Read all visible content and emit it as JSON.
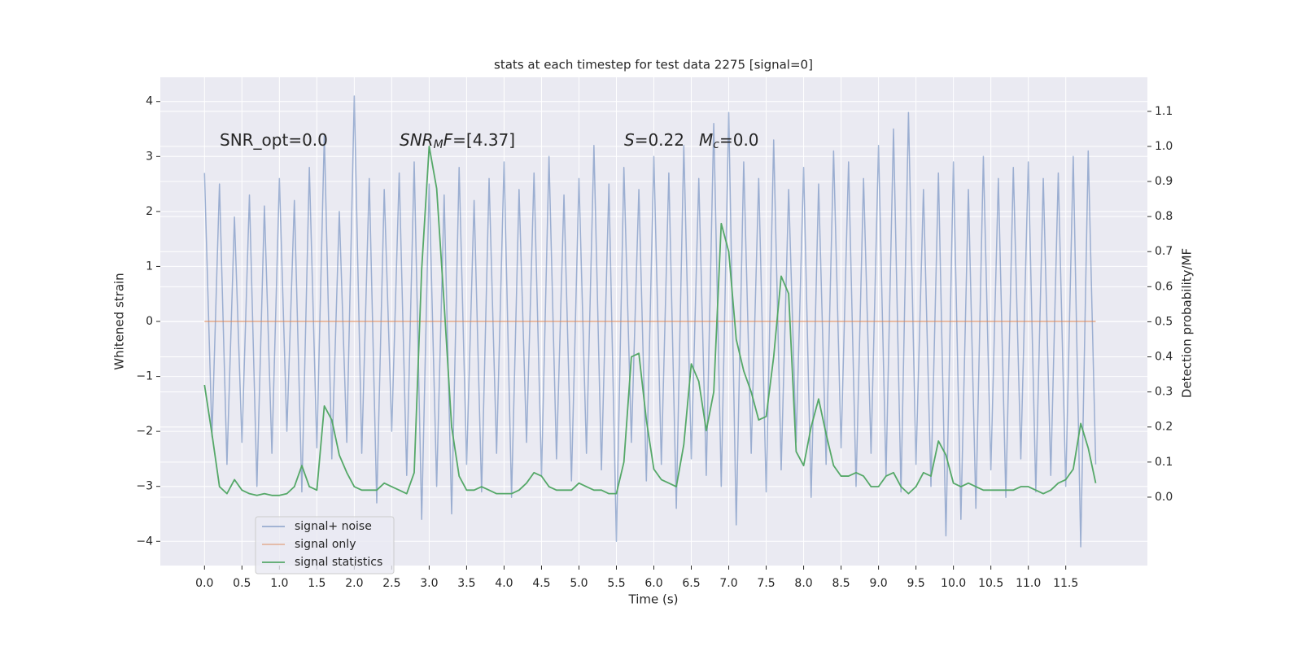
{
  "chart_data": {
    "type": "line",
    "title": "stats at each timestep for test data 2275 [signal=0]",
    "xlabel": "Time (s)",
    "ylabel": "Whitened strain",
    "y2label": "Detection probability/MF",
    "annotations": [
      [
        "SNR_opt=0.0"
      ],
      [
        "SNR",
        "M",
        "F",
        "=[4.37]"
      ],
      [
        "S",
        "=0.22"
      ],
      [
        "M",
        "c",
        "=0.0"
      ]
    ],
    "x": [
      0.0,
      0.1,
      0.2,
      0.3,
      0.4,
      0.5,
      0.6,
      0.7,
      0.8,
      0.9,
      1.0,
      1.1,
      1.2,
      1.3,
      1.4,
      1.5,
      1.6,
      1.7,
      1.8,
      1.9,
      2.0,
      2.1,
      2.2,
      2.3,
      2.4,
      2.5,
      2.6,
      2.7,
      2.8,
      2.9,
      3.0,
      3.1,
      3.2,
      3.3,
      3.4,
      3.5,
      3.6,
      3.7,
      3.8,
      3.9,
      4.0,
      4.1,
      4.2,
      4.3,
      4.4,
      4.5,
      4.6,
      4.7,
      4.8,
      4.9,
      5.0,
      5.1,
      5.2,
      5.3,
      5.4,
      5.5,
      5.6,
      5.7,
      5.8,
      5.9,
      6.0,
      6.1,
      6.2,
      6.3,
      6.4,
      6.5,
      6.6,
      6.7,
      6.8,
      6.9,
      7.0,
      7.1,
      7.2,
      7.3,
      7.4,
      7.5,
      7.6,
      7.7,
      7.8,
      7.9,
      8.0,
      8.1,
      8.2,
      8.3,
      8.4,
      8.5,
      8.6,
      8.7,
      8.8,
      8.9,
      9.0,
      9.1,
      9.2,
      9.3,
      9.4,
      9.5,
      9.6,
      9.7,
      9.8,
      9.9,
      10.0,
      10.1,
      10.2,
      10.3,
      10.4,
      10.5,
      10.6,
      10.7,
      10.8,
      10.9,
      11.0,
      11.1,
      11.2,
      11.3,
      11.4,
      11.5,
      11.6,
      11.7,
      11.8,
      11.9
    ],
    "series": [
      {
        "name": "signal+ noise",
        "color": "#4c72b0",
        "values": [
          2.7,
          -2.1,
          2.5,
          -2.6,
          1.9,
          -2.2,
          2.3,
          -3.0,
          2.1,
          -2.4,
          2.6,
          -2.0,
          2.2,
          -3.1,
          2.8,
          -2.3,
          3.4,
          -2.5,
          2.0,
          -2.2,
          4.1,
          -2.4,
          2.6,
          -3.3,
          2.4,
          -2.0,
          2.7,
          -2.8,
          2.9,
          -3.6,
          2.5,
          -3.0,
          2.3,
          -3.5,
          2.8,
          -2.6,
          2.2,
          -3.1,
          2.6,
          -2.4,
          2.9,
          -3.2,
          2.4,
          -2.2,
          2.7,
          -2.8,
          3.0,
          -2.5,
          2.3,
          -2.9,
          2.6,
          -2.4,
          3.2,
          -2.7,
          2.5,
          -4.0,
          2.8,
          -2.2,
          2.4,
          -2.9,
          3.0,
          -2.6,
          2.7,
          -3.4,
          3.2,
          -2.5,
          2.6,
          -2.8,
          3.6,
          -3.0,
          3.8,
          -3.7,
          2.9,
          -2.4,
          2.6,
          -3.1,
          3.3,
          -2.7,
          2.4,
          -2.2,
          2.8,
          -3.2,
          2.5,
          -2.6,
          3.1,
          -2.3,
          2.9,
          -3.0,
          2.6,
          -2.4,
          3.2,
          -2.8,
          3.5,
          -3.1,
          3.8,
          -2.6,
          2.4,
          -3.0,
          2.7,
          -3.9,
          2.9,
          -3.6,
          2.4,
          -3.4,
          3.0,
          -2.7,
          2.6,
          -3.2,
          2.8,
          -2.5,
          2.9,
          -3.1,
          2.6,
          -2.8,
          2.7,
          -3.0,
          3.0,
          -4.1,
          3.1,
          -2.6
        ]
      },
      {
        "name": "signal only",
        "color": "#dd8452",
        "values": [
          0,
          0,
          0,
          0,
          0,
          0,
          0,
          0,
          0,
          0,
          0,
          0,
          0,
          0,
          0,
          0,
          0,
          0,
          0,
          0,
          0,
          0,
          0,
          0,
          0,
          0,
          0,
          0,
          0,
          0,
          0,
          0,
          0,
          0,
          0,
          0,
          0,
          0,
          0,
          0,
          0,
          0,
          0,
          0,
          0,
          0,
          0,
          0,
          0,
          0,
          0,
          0,
          0,
          0,
          0,
          0,
          0,
          0,
          0,
          0,
          0,
          0,
          0,
          0,
          0,
          0,
          0,
          0,
          0,
          0,
          0,
          0,
          0,
          0,
          0,
          0,
          0,
          0,
          0,
          0,
          0,
          0,
          0,
          0,
          0,
          0,
          0,
          0,
          0,
          0,
          0,
          0,
          0,
          0,
          0,
          0,
          0,
          0,
          0,
          0,
          0,
          0,
          0,
          0,
          0,
          0,
          0,
          0,
          0,
          0,
          0,
          0,
          0,
          0,
          0,
          0,
          0,
          0,
          0,
          0
        ]
      },
      {
        "name": "signal statistics",
        "color": "#55a868",
        "axis": "y2",
        "values": [
          0.32,
          0.18,
          0.03,
          0.01,
          0.05,
          0.02,
          0.01,
          0.005,
          0.01,
          0.005,
          0.005,
          0.01,
          0.03,
          0.09,
          0.03,
          0.02,
          0.26,
          0.22,
          0.12,
          0.07,
          0.03,
          0.02,
          0.02,
          0.02,
          0.04,
          0.03,
          0.02,
          0.01,
          0.07,
          0.65,
          1.0,
          0.88,
          0.55,
          0.2,
          0.06,
          0.02,
          0.02,
          0.03,
          0.02,
          0.01,
          0.01,
          0.01,
          0.02,
          0.04,
          0.07,
          0.06,
          0.03,
          0.02,
          0.02,
          0.02,
          0.04,
          0.03,
          0.02,
          0.02,
          0.01,
          0.01,
          0.1,
          0.4,
          0.41,
          0.22,
          0.08,
          0.05,
          0.04,
          0.03,
          0.15,
          0.38,
          0.33,
          0.19,
          0.3,
          0.78,
          0.7,
          0.45,
          0.36,
          0.3,
          0.22,
          0.23,
          0.4,
          0.63,
          0.58,
          0.13,
          0.09,
          0.2,
          0.28,
          0.18,
          0.09,
          0.06,
          0.06,
          0.07,
          0.06,
          0.03,
          0.03,
          0.06,
          0.07,
          0.03,
          0.01,
          0.03,
          0.07,
          0.06,
          0.16,
          0.12,
          0.04,
          0.03,
          0.04,
          0.03,
          0.02,
          0.02,
          0.02,
          0.02,
          0.02,
          0.03,
          0.03,
          0.02,
          0.01,
          0.02,
          0.04,
          0.05,
          0.08,
          0.21,
          0.14,
          0.04
        ]
      }
    ],
    "xlim": [
      -0.59,
      12.59
    ],
    "xticks": [
      {
        "value": 0,
        "label": "0.0"
      },
      {
        "value": 0.5,
        "label": "0.5"
      },
      {
        "value": 1,
        "label": "1.0"
      },
      {
        "value": 1.5,
        "label": "1.5"
      },
      {
        "value": 2,
        "label": "2.0"
      },
      {
        "value": 2.5,
        "label": "2.5"
      },
      {
        "value": 3,
        "label": "3.0"
      },
      {
        "value": 3.5,
        "label": "3.5"
      },
      {
        "value": 4,
        "label": "4.0"
      },
      {
        "value": 4.5,
        "label": "4.5"
      },
      {
        "value": 5,
        "label": "5.0"
      },
      {
        "value": 5.5,
        "label": "5.5"
      },
      {
        "value": 6,
        "label": "6.0"
      },
      {
        "value": 6.5,
        "label": "6.5"
      },
      {
        "value": 7,
        "label": "7.0"
      },
      {
        "value": 7.5,
        "label": "7.5"
      },
      {
        "value": 8,
        "label": "8.0"
      },
      {
        "value": 8.5,
        "label": "8.5"
      },
      {
        "value": 9,
        "label": "9.0"
      },
      {
        "value": 9.5,
        "label": "9.5"
      },
      {
        "value": 10,
        "label": "10.0"
      },
      {
        "value": 10.5,
        "label": "10.5"
      },
      {
        "value": 11,
        "label": "11.0"
      },
      {
        "value": 11.5,
        "label": "11.5"
      }
    ],
    "ylim": [
      -4.44,
      4.44
    ],
    "yticks": [
      {
        "value": -4,
        "label": "−4"
      },
      {
        "value": -3,
        "label": "−3"
      },
      {
        "value": -2,
        "label": "−2"
      },
      {
        "value": -1,
        "label": "−1"
      },
      0,
      1,
      2,
      3,
      4
    ],
    "y2lim": [
      -0.195,
      1.197
    ],
    "y2ticks": [
      {
        "value": 0,
        "label": "0.0"
      },
      {
        "value": 0.1,
        "label": "0.1"
      },
      {
        "value": 0.2,
        "label": "0.2"
      },
      {
        "value": 0.3,
        "label": "0.3"
      },
      {
        "value": 0.4,
        "label": "0.4"
      },
      {
        "value": 0.5,
        "label": "0.5"
      },
      {
        "value": 0.6,
        "label": "0.6"
      },
      {
        "value": 0.7,
        "label": "0.7"
      },
      {
        "value": 0.8,
        "label": "0.8"
      },
      {
        "value": 0.9,
        "label": "0.9"
      },
      {
        "value": 1.0,
        "label": "1.0"
      },
      {
        "value": 1.1,
        "label": "1.1"
      }
    ],
    "grid": true,
    "legend": "lower left"
  }
}
